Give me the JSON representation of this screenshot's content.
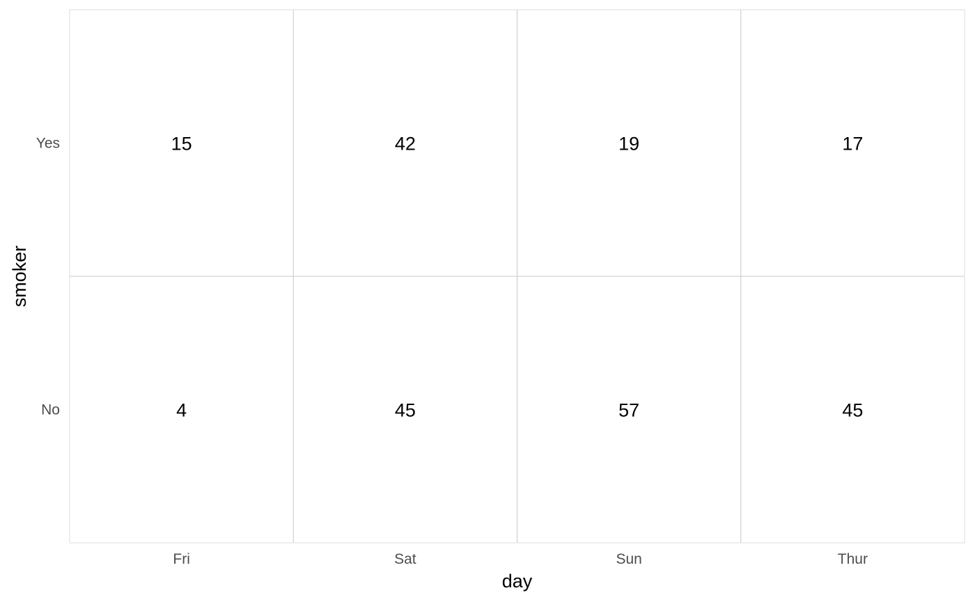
{
  "chart_data": {
    "type": "table",
    "xlabel": "day",
    "ylabel": "smoker",
    "x_categories": [
      "Fri",
      "Sat",
      "Sun",
      "Thur"
    ],
    "y_categories": [
      "Yes",
      "No"
    ],
    "cells": [
      {
        "x": "Fri",
        "y": "Yes",
        "value": 15
      },
      {
        "x": "Sat",
        "y": "Yes",
        "value": 42
      },
      {
        "x": "Sun",
        "y": "Yes",
        "value": 19
      },
      {
        "x": "Thur",
        "y": "Yes",
        "value": 17
      },
      {
        "x": "Fri",
        "y": "No",
        "value": 4
      },
      {
        "x": "Sat",
        "y": "No",
        "value": 45
      },
      {
        "x": "Sun",
        "y": "No",
        "value": 57
      },
      {
        "x": "Thur",
        "y": "No",
        "value": 45
      }
    ],
    "grid": true,
    "colors": {
      "background": "#ffffff",
      "grid": "#c8c8c8",
      "panel_border": "#dcdcdc",
      "tick_text": "#4d4d4d",
      "text": "#000000"
    }
  }
}
